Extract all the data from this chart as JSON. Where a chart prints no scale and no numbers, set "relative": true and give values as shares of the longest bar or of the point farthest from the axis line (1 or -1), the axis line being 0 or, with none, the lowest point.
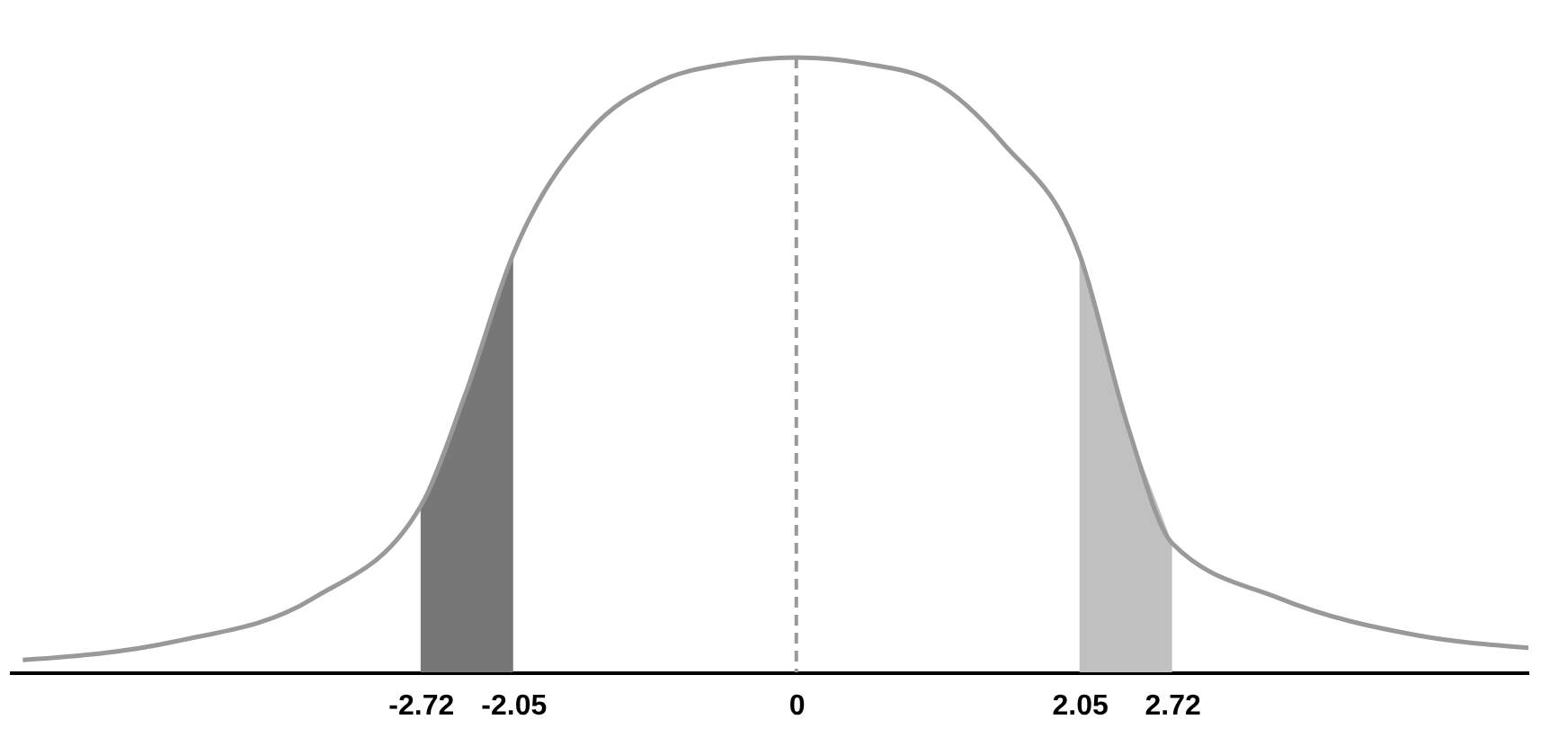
{
  "chart_data": {
    "type": "line",
    "relative": true,
    "xlim": [
      -5.7,
      5.3
    ],
    "xticks": [
      -2.72,
      -2.05,
      0,
      2.05,
      2.72
    ],
    "grid": false,
    "series": [
      {
        "color": "#999999",
        "x": [
          -5.6,
          -4.5,
          -3.5,
          -2.72,
          -2.4,
          -2.05,
          -1.5,
          -1,
          -0.5,
          0,
          0.5,
          1,
          1.5,
          2.05,
          2.4,
          2.72,
          3.5,
          4.5,
          5.3
        ],
        "values": [
          0.02,
          0.05,
          0.12,
          0.27,
          0.45,
          0.68,
          0.88,
          0.96,
          0.99,
          1,
          0.99,
          0.96,
          0.86,
          0.68,
          0.4,
          0.21,
          0.12,
          0.06,
          0.04
        ]
      },
      {
        "type": "area",
        "color": "#777777",
        "x": [
          -2.72,
          -2.4,
          -2.05
        ],
        "values": [
          0.27,
          0.45,
          0.68
        ]
      },
      {
        "type": "area",
        "color": "#c0c0c0",
        "x": [
          2.05,
          2.4,
          2.72
        ],
        "values": [
          0.68,
          0.4,
          0.21
        ]
      }
    ],
    "ref_lines": [
      {
        "axis": "x",
        "value": 0,
        "line_style": "dashed",
        "color": "#999999"
      }
    ]
  }
}
